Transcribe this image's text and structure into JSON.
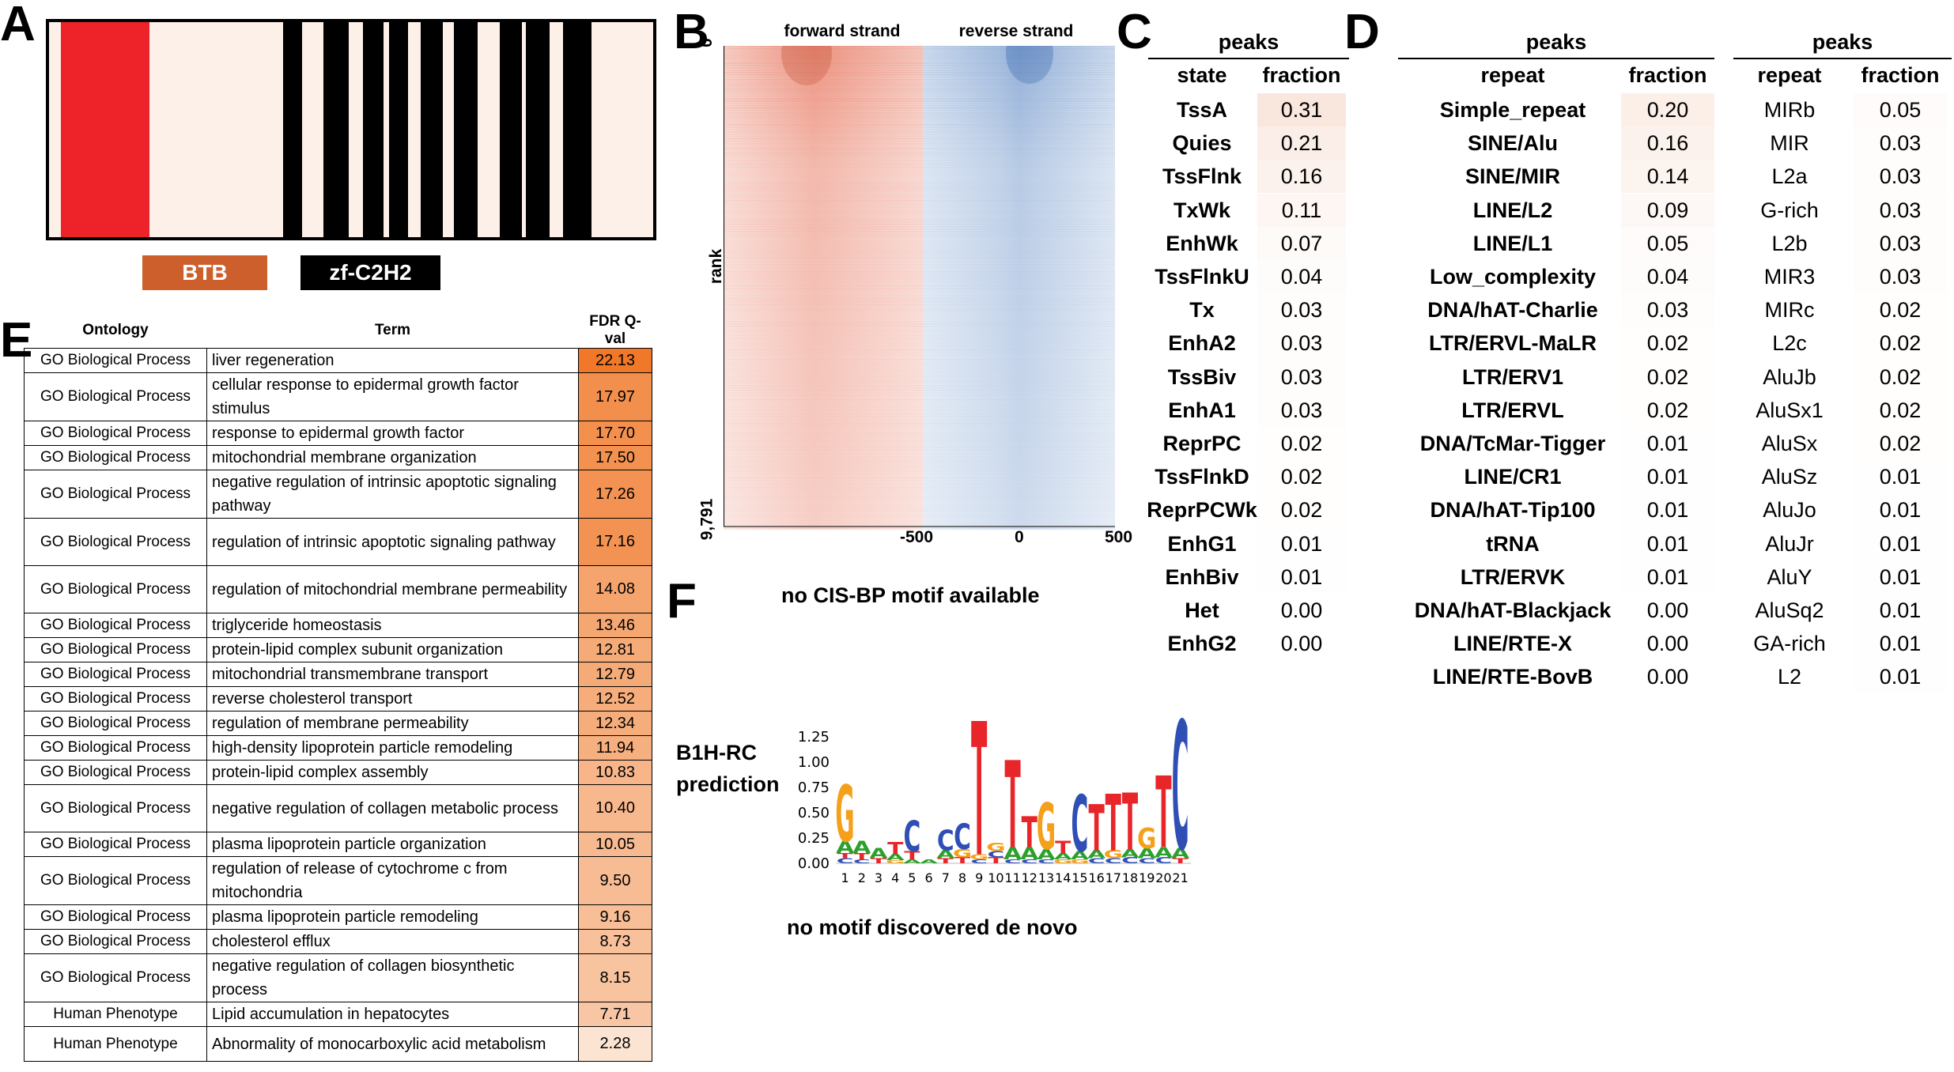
{
  "panels": {
    "A": "A",
    "B": "B",
    "C": "C",
    "D": "D",
    "E": "E",
    "F": "F"
  },
  "panel_a": {
    "domains": [
      {
        "label": "BTB",
        "color": "#cc5f2b"
      },
      {
        "label": "zf-C2H2",
        "color": "#000000"
      }
    ],
    "colors": {
      "btb_region": "#ee2229",
      "background": "#fdf0e8",
      "zf_stripe": "#000000"
    }
  },
  "panel_b": {
    "forward_label": "forward strand",
    "reverse_label": "reverse strand",
    "y_axis_label": "rank",
    "y_top": "0",
    "y_bottom": "9,791",
    "x_ticks": [
      "-500",
      "0",
      "500"
    ],
    "forward_color": "#e8735a",
    "reverse_color": "#5a86c4",
    "note": "no CIS-BP motif available"
  },
  "panel_c": {
    "title": "peaks",
    "col1": "state",
    "col2": "fraction",
    "rows": [
      {
        "name": "TssA",
        "value": "0.31"
      },
      {
        "name": "Quies",
        "value": "0.21"
      },
      {
        "name": "TssFlnk",
        "value": "0.16"
      },
      {
        "name": "TxWk",
        "value": "0.11"
      },
      {
        "name": "EnhWk",
        "value": "0.07"
      },
      {
        "name": "TssFlnkU",
        "value": "0.04"
      },
      {
        "name": "Tx",
        "value": "0.03"
      },
      {
        "name": "EnhA2",
        "value": "0.03"
      },
      {
        "name": "TssBiv",
        "value": "0.03"
      },
      {
        "name": "EnhA1",
        "value": "0.03"
      },
      {
        "name": "ReprPC",
        "value": "0.02"
      },
      {
        "name": "TssFlnkD",
        "value": "0.02"
      },
      {
        "name": "ReprPCWk",
        "value": "0.02"
      },
      {
        "name": "EnhG1",
        "value": "0.01"
      },
      {
        "name": "EnhBiv",
        "value": "0.01"
      },
      {
        "name": "Het",
        "value": "0.00"
      },
      {
        "name": "EnhG2",
        "value": "0.00"
      }
    ]
  },
  "panel_d": {
    "left": {
      "title": "peaks",
      "col1": "repeat",
      "col2": "fraction",
      "rows": [
        {
          "name": "Simple_repeat",
          "value": "0.20"
        },
        {
          "name": "SINE/Alu",
          "value": "0.16"
        },
        {
          "name": "SINE/MIR",
          "value": "0.14"
        },
        {
          "name": "LINE/L2",
          "value": "0.09"
        },
        {
          "name": "LINE/L1",
          "value": "0.05"
        },
        {
          "name": "Low_complexity",
          "value": "0.04"
        },
        {
          "name": "DNA/hAT-Charlie",
          "value": "0.03"
        },
        {
          "name": "LTR/ERVL-MaLR",
          "value": "0.02"
        },
        {
          "name": "LTR/ERV1",
          "value": "0.02"
        },
        {
          "name": "LTR/ERVL",
          "value": "0.02"
        },
        {
          "name": "DNA/TcMar-Tigger",
          "value": "0.01"
        },
        {
          "name": "LINE/CR1",
          "value": "0.01"
        },
        {
          "name": "DNA/hAT-Tip100",
          "value": "0.01"
        },
        {
          "name": "tRNA",
          "value": "0.01"
        },
        {
          "name": "LTR/ERVK",
          "value": "0.01"
        },
        {
          "name": "DNA/hAT-Blackjack",
          "value": "0.00"
        },
        {
          "name": "LINE/RTE-X",
          "value": "0.00"
        },
        {
          "name": "LINE/RTE-BovB",
          "value": "0.00"
        }
      ]
    },
    "right": {
      "title": "peaks",
      "col1": "repeat",
      "col2": "fraction",
      "rows": [
        {
          "name": "MIRb",
          "value": "0.05"
        },
        {
          "name": "MIR",
          "value": "0.03"
        },
        {
          "name": "L2a",
          "value": "0.03"
        },
        {
          "name": "G-rich",
          "value": "0.03"
        },
        {
          "name": "L2b",
          "value": "0.03"
        },
        {
          "name": "MIR3",
          "value": "0.03"
        },
        {
          "name": "MIRc",
          "value": "0.02"
        },
        {
          "name": "L2c",
          "value": "0.02"
        },
        {
          "name": "AluJb",
          "value": "0.02"
        },
        {
          "name": "AluSx1",
          "value": "0.02"
        },
        {
          "name": "AluSx",
          "value": "0.02"
        },
        {
          "name": "AluSz",
          "value": "0.01"
        },
        {
          "name": "AluJo",
          "value": "0.01"
        },
        {
          "name": "AluJr",
          "value": "0.01"
        },
        {
          "name": "AluY",
          "value": "0.01"
        },
        {
          "name": "AluSq2",
          "value": "0.01"
        },
        {
          "name": "GA-rich",
          "value": "0.01"
        },
        {
          "name": "L2",
          "value": "0.01"
        }
      ]
    }
  },
  "panel_e": {
    "headers": [
      "Ontology",
      "Term",
      "FDR Q-val"
    ],
    "rows": [
      {
        "ontology": "GO Biological Process",
        "term": "liver regeneration",
        "q": "22.13",
        "lines": 1
      },
      {
        "ontology": "GO Biological Process",
        "term": "cellular response to epidermal growth factor stimulus",
        "q": "17.97",
        "lines": 2
      },
      {
        "ontology": "GO Biological Process",
        "term": "response to epidermal growth factor",
        "q": "17.70",
        "lines": 1
      },
      {
        "ontology": "GO Biological Process",
        "term": "mitochondrial membrane organization",
        "q": "17.50",
        "lines": 1
      },
      {
        "ontology": "GO Biological Process",
        "term": "negative regulation of intrinsic apoptotic signaling pathway",
        "q": "17.26",
        "lines": 2
      },
      {
        "ontology": "GO Biological Process",
        "term": "regulation of intrinsic apoptotic signaling pathway",
        "q": "17.16",
        "lines": 2
      },
      {
        "ontology": "GO Biological Process",
        "term": "regulation of mitochondrial membrane permeability",
        "q": "14.08",
        "lines": 2
      },
      {
        "ontology": "GO Biological Process",
        "term": "triglyceride homeostasis",
        "q": "13.46",
        "lines": 1
      },
      {
        "ontology": "GO Biological Process",
        "term": "protein-lipid complex subunit organization",
        "q": "12.81",
        "lines": 1
      },
      {
        "ontology": "GO Biological Process",
        "term": "mitochondrial transmembrane transport",
        "q": "12.79",
        "lines": 1
      },
      {
        "ontology": "GO Biological Process",
        "term": "reverse cholesterol transport",
        "q": "12.52",
        "lines": 1
      },
      {
        "ontology": "GO Biological Process",
        "term": "regulation of membrane permeability",
        "q": "12.34",
        "lines": 1
      },
      {
        "ontology": "GO Biological Process",
        "term": "high-density lipoprotein particle remodeling",
        "q": "11.94",
        "lines": 1
      },
      {
        "ontology": "GO Biological Process",
        "term": "protein-lipid complex assembly",
        "q": "10.83",
        "lines": 1
      },
      {
        "ontology": "GO Biological Process",
        "term": "negative regulation of collagen metabolic process",
        "q": "10.40",
        "lines": 2
      },
      {
        "ontology": "GO Biological Process",
        "term": "plasma lipoprotein particle organization",
        "q": "10.05",
        "lines": 1
      },
      {
        "ontology": "GO Biological Process",
        "term": "regulation of release of cytochrome c from mitochondria",
        "q": "9.50",
        "lines": 2
      },
      {
        "ontology": "GO Biological Process",
        "term": "plasma lipoprotein particle remodeling",
        "q": "9.16",
        "lines": 1
      },
      {
        "ontology": "GO Biological Process",
        "term": "cholesterol efflux",
        "q": "8.73",
        "lines": 1
      },
      {
        "ontology": "GO Biological Process",
        "term": "negative regulation of collagen biosynthetic process",
        "q": "8.15",
        "lines": 2
      },
      {
        "ontology": "Human Phenotype",
        "term": "Lipid accumulation in hepatocytes",
        "q": "7.71",
        "lines": 1
      },
      {
        "ontology": "Human Phenotype",
        "term": "Abnormality of monocarboxylic acid metabolism",
        "q": "2.28",
        "lines": 1.5
      }
    ]
  },
  "panel_f": {
    "label_line1": "B1H-RC",
    "label_line2": "prediction",
    "y_ticks": [
      "1.25",
      "1.00",
      "0.75",
      "0.50",
      "0.25",
      "0.00"
    ],
    "positions": [
      "1",
      "2",
      "3",
      "4",
      "5",
      "6",
      "7",
      "8",
      "9",
      "10",
      "11",
      "12",
      "13",
      "14",
      "15",
      "16",
      "17",
      "18",
      "19",
      "20",
      "21"
    ],
    "note": "no motif discovered de novo",
    "colors": {
      "A": "#2ca02c",
      "C": "#2f4fb5",
      "G": "#f5a01a",
      "T": "#e8262a"
    },
    "motif": [
      [
        [
          "G",
          0.55
        ],
        [
          "A",
          0.12
        ],
        [
          "C",
          0.05
        ],
        [
          "T",
          0.05
        ]
      ],
      [
        [
          "A",
          0.12
        ],
        [
          "T",
          0.06
        ],
        [
          "C",
          0.04
        ]
      ],
      [
        [
          "A",
          0.1
        ],
        [
          "T",
          0.05
        ]
      ],
      [
        [
          "T",
          0.12
        ],
        [
          "A",
          0.06
        ],
        [
          "G",
          0.03
        ]
      ],
      [
        [
          "C",
          0.3
        ],
        [
          "T",
          0.08
        ],
        [
          "A",
          0.04
        ]
      ],
      [
        [
          "A",
          0.04
        ]
      ],
      [
        [
          "C",
          0.2
        ],
        [
          "A",
          0.08
        ],
        [
          "T",
          0.05
        ]
      ],
      [
        [
          "C",
          0.25
        ],
        [
          "G",
          0.08
        ],
        [
          "T",
          0.06
        ]
      ],
      [
        [
          "T",
          1.3
        ],
        [
          "G",
          0.05
        ],
        [
          "C",
          0.04
        ]
      ],
      [
        [
          "G",
          0.08
        ],
        [
          "T",
          0.06
        ],
        [
          "C",
          0.06
        ]
      ],
      [
        [
          "T",
          0.85
        ],
        [
          "A",
          0.12
        ],
        [
          "C",
          0.04
        ]
      ],
      [
        [
          "T",
          0.3
        ],
        [
          "A",
          0.12
        ],
        [
          "C",
          0.04
        ]
      ],
      [
        [
          "G",
          0.45
        ],
        [
          "A",
          0.1
        ],
        [
          "C",
          0.04
        ]
      ],
      [
        [
          "T",
          0.12
        ],
        [
          "A",
          0.06
        ],
        [
          "G",
          0.04
        ]
      ],
      [
        [
          "C",
          0.55
        ],
        [
          "A",
          0.08
        ],
        [
          "G",
          0.04
        ]
      ],
      [
        [
          "T",
          0.45
        ],
        [
          "A",
          0.08
        ],
        [
          "C",
          0.05
        ]
      ],
      [
        [
          "T",
          0.55
        ],
        [
          "G",
          0.08
        ],
        [
          "C",
          0.05
        ]
      ],
      [
        [
          "T",
          0.55
        ],
        [
          "A",
          0.08
        ],
        [
          "C",
          0.06
        ]
      ],
      [
        [
          "G",
          0.2
        ],
        [
          "A",
          0.1
        ],
        [
          "C",
          0.05
        ]
      ],
      [
        [
          "T",
          0.7
        ],
        [
          "A",
          0.1
        ],
        [
          "C",
          0.06
        ]
      ],
      [
        [
          "C",
          1.25
        ],
        [
          "A",
          0.1
        ],
        [
          "T",
          0.05
        ]
      ]
    ]
  }
}
